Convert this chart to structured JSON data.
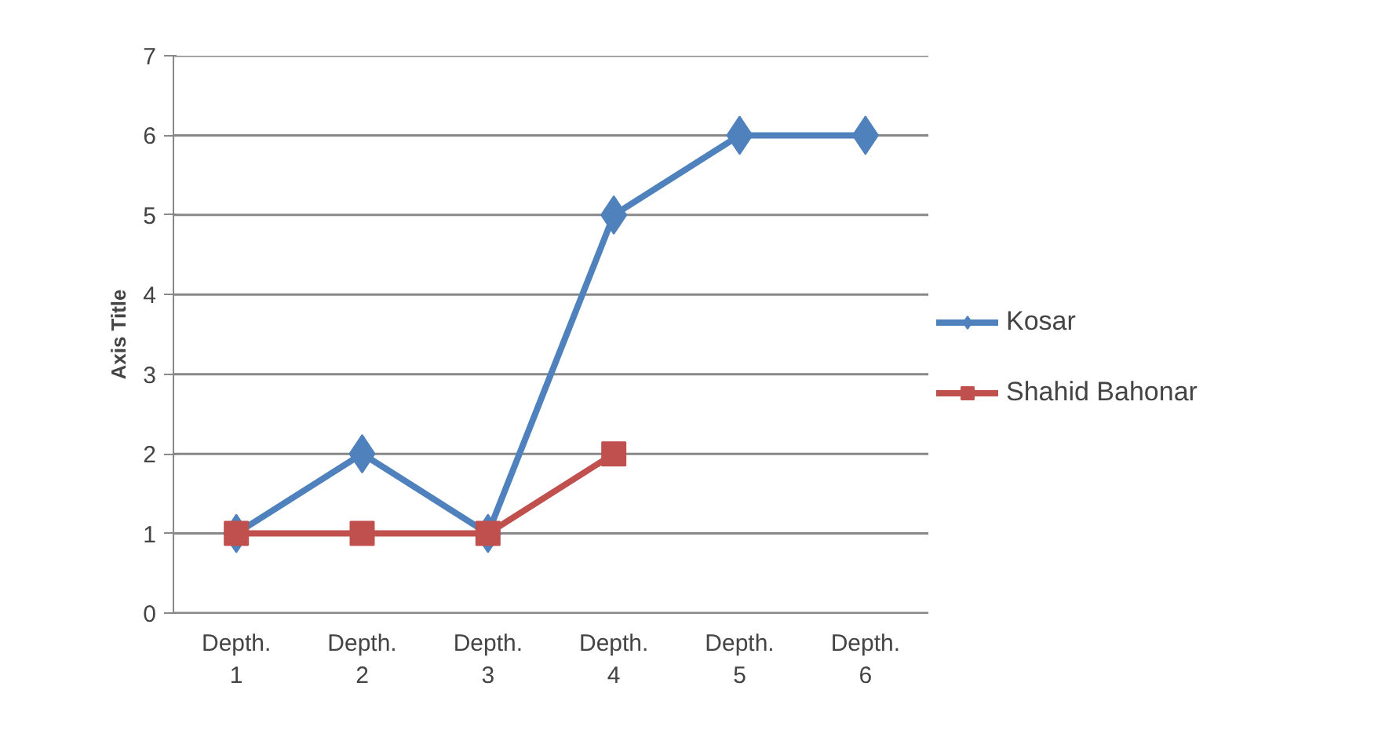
{
  "chart_data": {
    "type": "line",
    "ylabel": "Axis Title",
    "categories": [
      "Depth. 1",
      "Depth. 2",
      "Depth. 3",
      "Depth. 4",
      "Depth. 5",
      "Depth. 6"
    ],
    "series": [
      {
        "name": "Kosar",
        "color": "#4f81bd",
        "marker": "diamond",
        "values": [
          1,
          2,
          1,
          5,
          6,
          6
        ]
      },
      {
        "name": "Shahid Bahonar",
        "color": "#c0504d",
        "marker": "square",
        "values": [
          1,
          1,
          1,
          2,
          null,
          null
        ]
      }
    ],
    "ylim": [
      0,
      7
    ],
    "yticks": [
      0,
      1,
      2,
      3,
      4,
      5,
      6,
      7
    ],
    "grid": "y",
    "legend": "right",
    "line_style": "solid"
  }
}
